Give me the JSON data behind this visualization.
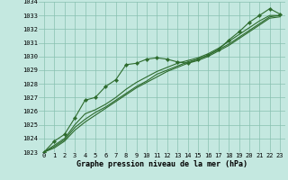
{
  "title": "Graphe pression niveau de la mer (hPa)",
  "bg_color": "#c4e8e0",
  "plot_bg_color": "#c4e8e0",
  "grid_color": "#88c0b0",
  "line_color": "#2d6b2d",
  "marker_color": "#2d6b2d",
  "xlim": [
    -0.5,
    23.5
  ],
  "ylim": [
    1023,
    1034
  ],
  "xticks": [
    0,
    1,
    2,
    3,
    4,
    5,
    6,
    7,
    8,
    9,
    10,
    11,
    12,
    13,
    14,
    15,
    16,
    17,
    18,
    19,
    20,
    21,
    22,
    23
  ],
  "yticks": [
    1023,
    1024,
    1025,
    1026,
    1027,
    1028,
    1029,
    1030,
    1031,
    1032,
    1033,
    1034
  ],
  "series": [
    [
      1023.0,
      1023.8,
      1024.3,
      1025.5,
      1026.8,
      1027.0,
      1027.8,
      1028.3,
      1029.4,
      1029.5,
      1029.8,
      1029.9,
      1029.8,
      1029.6,
      1029.5,
      1029.8,
      1030.1,
      1030.5,
      1031.2,
      1031.8,
      1032.5,
      1033.0,
      1033.5,
      1033.1
    ],
    [
      1023.0,
      1023.5,
      1024.0,
      1025.0,
      1025.8,
      1026.1,
      1026.5,
      1027.0,
      1027.6,
      1028.1,
      1028.5,
      1028.9,
      1029.2,
      1029.5,
      1029.7,
      1029.9,
      1030.2,
      1030.6,
      1031.1,
      1031.6,
      1032.1,
      1032.6,
      1033.0,
      1033.0
    ],
    [
      1023.0,
      1023.4,
      1023.9,
      1024.8,
      1025.4,
      1025.9,
      1026.3,
      1026.8,
      1027.3,
      1027.8,
      1028.2,
      1028.7,
      1029.0,
      1029.3,
      1029.6,
      1029.8,
      1030.1,
      1030.5,
      1030.9,
      1031.4,
      1031.9,
      1032.4,
      1032.9,
      1033.0
    ],
    [
      1023.0,
      1023.3,
      1023.8,
      1024.6,
      1025.2,
      1025.7,
      1026.2,
      1026.7,
      1027.2,
      1027.7,
      1028.1,
      1028.5,
      1028.9,
      1029.2,
      1029.5,
      1029.7,
      1030.0,
      1030.4,
      1030.8,
      1031.3,
      1031.8,
      1032.3,
      1032.8,
      1032.9
    ]
  ],
  "tick_fontsize": 5.0,
  "label_fontsize": 6.0
}
